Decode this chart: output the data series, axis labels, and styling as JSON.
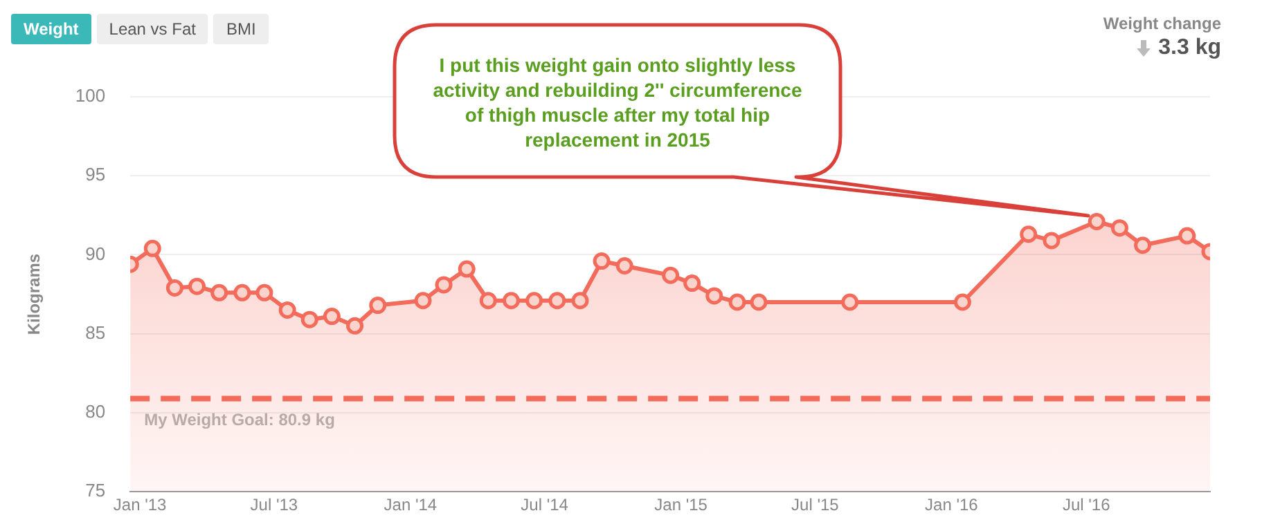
{
  "chart_data": {
    "type": "area",
    "ylabel": "Kilograms",
    "x": [
      "2012-12-19",
      "2013-01-18",
      "2013-02-17",
      "2013-03-19",
      "2013-04-18",
      "2013-05-19",
      "2013-06-18",
      "2013-07-19",
      "2013-08-18",
      "2013-09-17",
      "2013-10-18",
      "2013-11-18",
      "2014-01-18",
      "2014-02-15",
      "2014-03-18",
      "2014-04-16",
      "2014-05-17",
      "2014-06-17",
      "2014-07-18",
      "2014-08-18",
      "2014-09-16",
      "2014-10-17",
      "2014-12-18",
      "2015-01-16",
      "2015-02-15",
      "2015-03-18",
      "2015-04-16",
      "2015-08-17",
      "2016-01-16",
      "2016-04-14",
      "2016-05-15",
      "2016-07-15",
      "2016-08-15",
      "2016-09-15",
      "2016-11-14",
      "2016-12-15"
    ],
    "series": [
      {
        "color": "#f26b5b",
        "values": [
          89.4,
          90.4,
          87.9,
          88.0,
          87.6,
          87.6,
          87.6,
          86.5,
          85.9,
          86.1,
          85.5,
          86.8,
          87.1,
          88.1,
          89.1,
          87.1,
          87.1,
          87.1,
          87.1,
          87.1,
          89.6,
          89.3,
          88.7,
          88.2,
          87.4,
          87.0,
          87.0,
          87.0,
          87.0,
          91.3,
          90.9,
          92.1,
          91.7,
          90.6,
          91.2,
          90.2
        ]
      }
    ],
    "xlim": [
      "2012-12-19",
      "2016-12-15"
    ],
    "xticks": [
      {
        "value": "2013-01-01",
        "label": "Jan '13"
      },
      {
        "value": "2013-07-01",
        "label": "Jul '13"
      },
      {
        "value": "2014-01-01",
        "label": "Jan '14"
      },
      {
        "value": "2014-07-01",
        "label": "Jul '14"
      },
      {
        "value": "2015-01-01",
        "label": "Jan '15"
      },
      {
        "value": "2015-07-01",
        "label": "Jul '15"
      },
      {
        "value": "2016-01-01",
        "label": "Jan '16"
      },
      {
        "value": "2016-07-01",
        "label": "Jul '16"
      }
    ],
    "ylim": [
      75,
      100
    ],
    "yticks": [
      75,
      80,
      85,
      90,
      95,
      100
    ],
    "grid": "y",
    "marker": "circle",
    "line_style": "solid",
    "ref_lines": [
      {
        "axis": "y",
        "value": 80.9,
        "label": "My Weight Goal: 80.9 kg",
        "color": "#f26b5b",
        "line_style": "dashed"
      }
    ],
    "annotations": [
      "Weight",
      "Lean vs Fat",
      "BMI",
      "Weight change",
      "3.3 kg",
      "I put this weight gain onto slightly less activity and rebuilding 2'' circumference of thigh muscle after my total hip replacement in 2015"
    ]
  }
}
